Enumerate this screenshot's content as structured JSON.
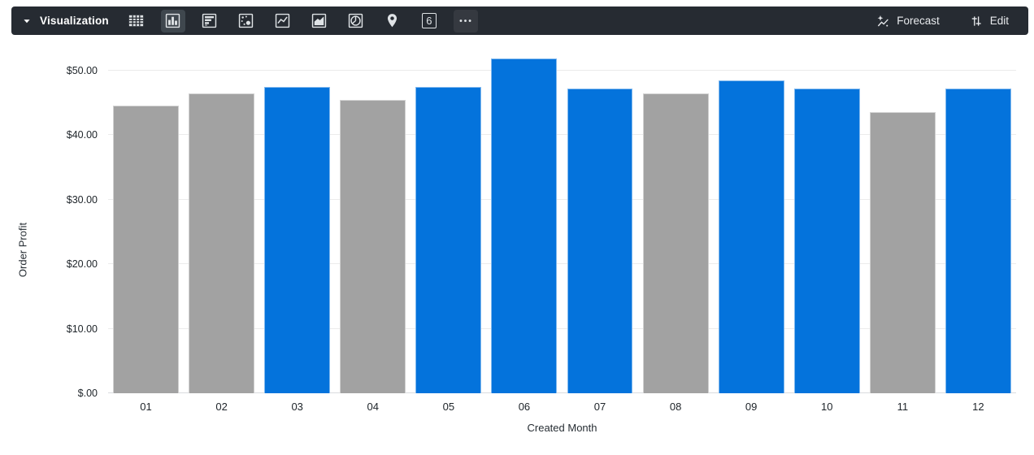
{
  "toolbar": {
    "title": "Visualization",
    "viz_types": [
      {
        "name": "table",
        "selected": false
      },
      {
        "name": "column-chart",
        "selected": true
      },
      {
        "name": "bar-chart",
        "selected": false
      },
      {
        "name": "scatter",
        "selected": false
      },
      {
        "name": "line-chart",
        "selected": false
      },
      {
        "name": "area-chart",
        "selected": false
      },
      {
        "name": "pie-chart",
        "selected": false
      },
      {
        "name": "map",
        "selected": false
      },
      {
        "name": "single-value",
        "selected": false
      },
      {
        "name": "more",
        "selected": false
      }
    ],
    "single_value_glyph": "6",
    "forecast_label": "Forecast",
    "edit_label": "Edit"
  },
  "colors": {
    "toolbar_bg": "#262B32",
    "selected_icon_bg": "#3F474E",
    "bar_blue": "#0473DC",
    "bar_gray": "#A2A2A2",
    "gridline": "#EBEBEB"
  },
  "chart_data": {
    "type": "bar",
    "categories": [
      "01",
      "02",
      "03",
      "04",
      "05",
      "06",
      "07",
      "08",
      "09",
      "10",
      "11",
      "12"
    ],
    "values": [
      44.5,
      46.4,
      47.5,
      45.4,
      47.5,
      51.9,
      47.2,
      46.5,
      48.4,
      47.2,
      43.6,
      47.2
    ],
    "bar_colors": [
      "#A2A2A2",
      "#A2A2A2",
      "#0473DC",
      "#A2A2A2",
      "#0473DC",
      "#0473DC",
      "#0473DC",
      "#A2A2A2",
      "#0473DC",
      "#0473DC",
      "#A2A2A2",
      "#0473DC"
    ],
    "title": "",
    "xlabel": "Created Month",
    "ylabel": "Order Profit",
    "ylim": [
      0,
      55
    ],
    "grid": true,
    "legend": "none",
    "yticks": [
      {
        "value": 0,
        "label": "$.00"
      },
      {
        "value": 10,
        "label": "$10.00"
      },
      {
        "value": 20,
        "label": "$20.00"
      },
      {
        "value": 30,
        "label": "$30.00"
      },
      {
        "value": 40,
        "label": "$40.00"
      },
      {
        "value": 50,
        "label": "$50.00"
      }
    ]
  }
}
